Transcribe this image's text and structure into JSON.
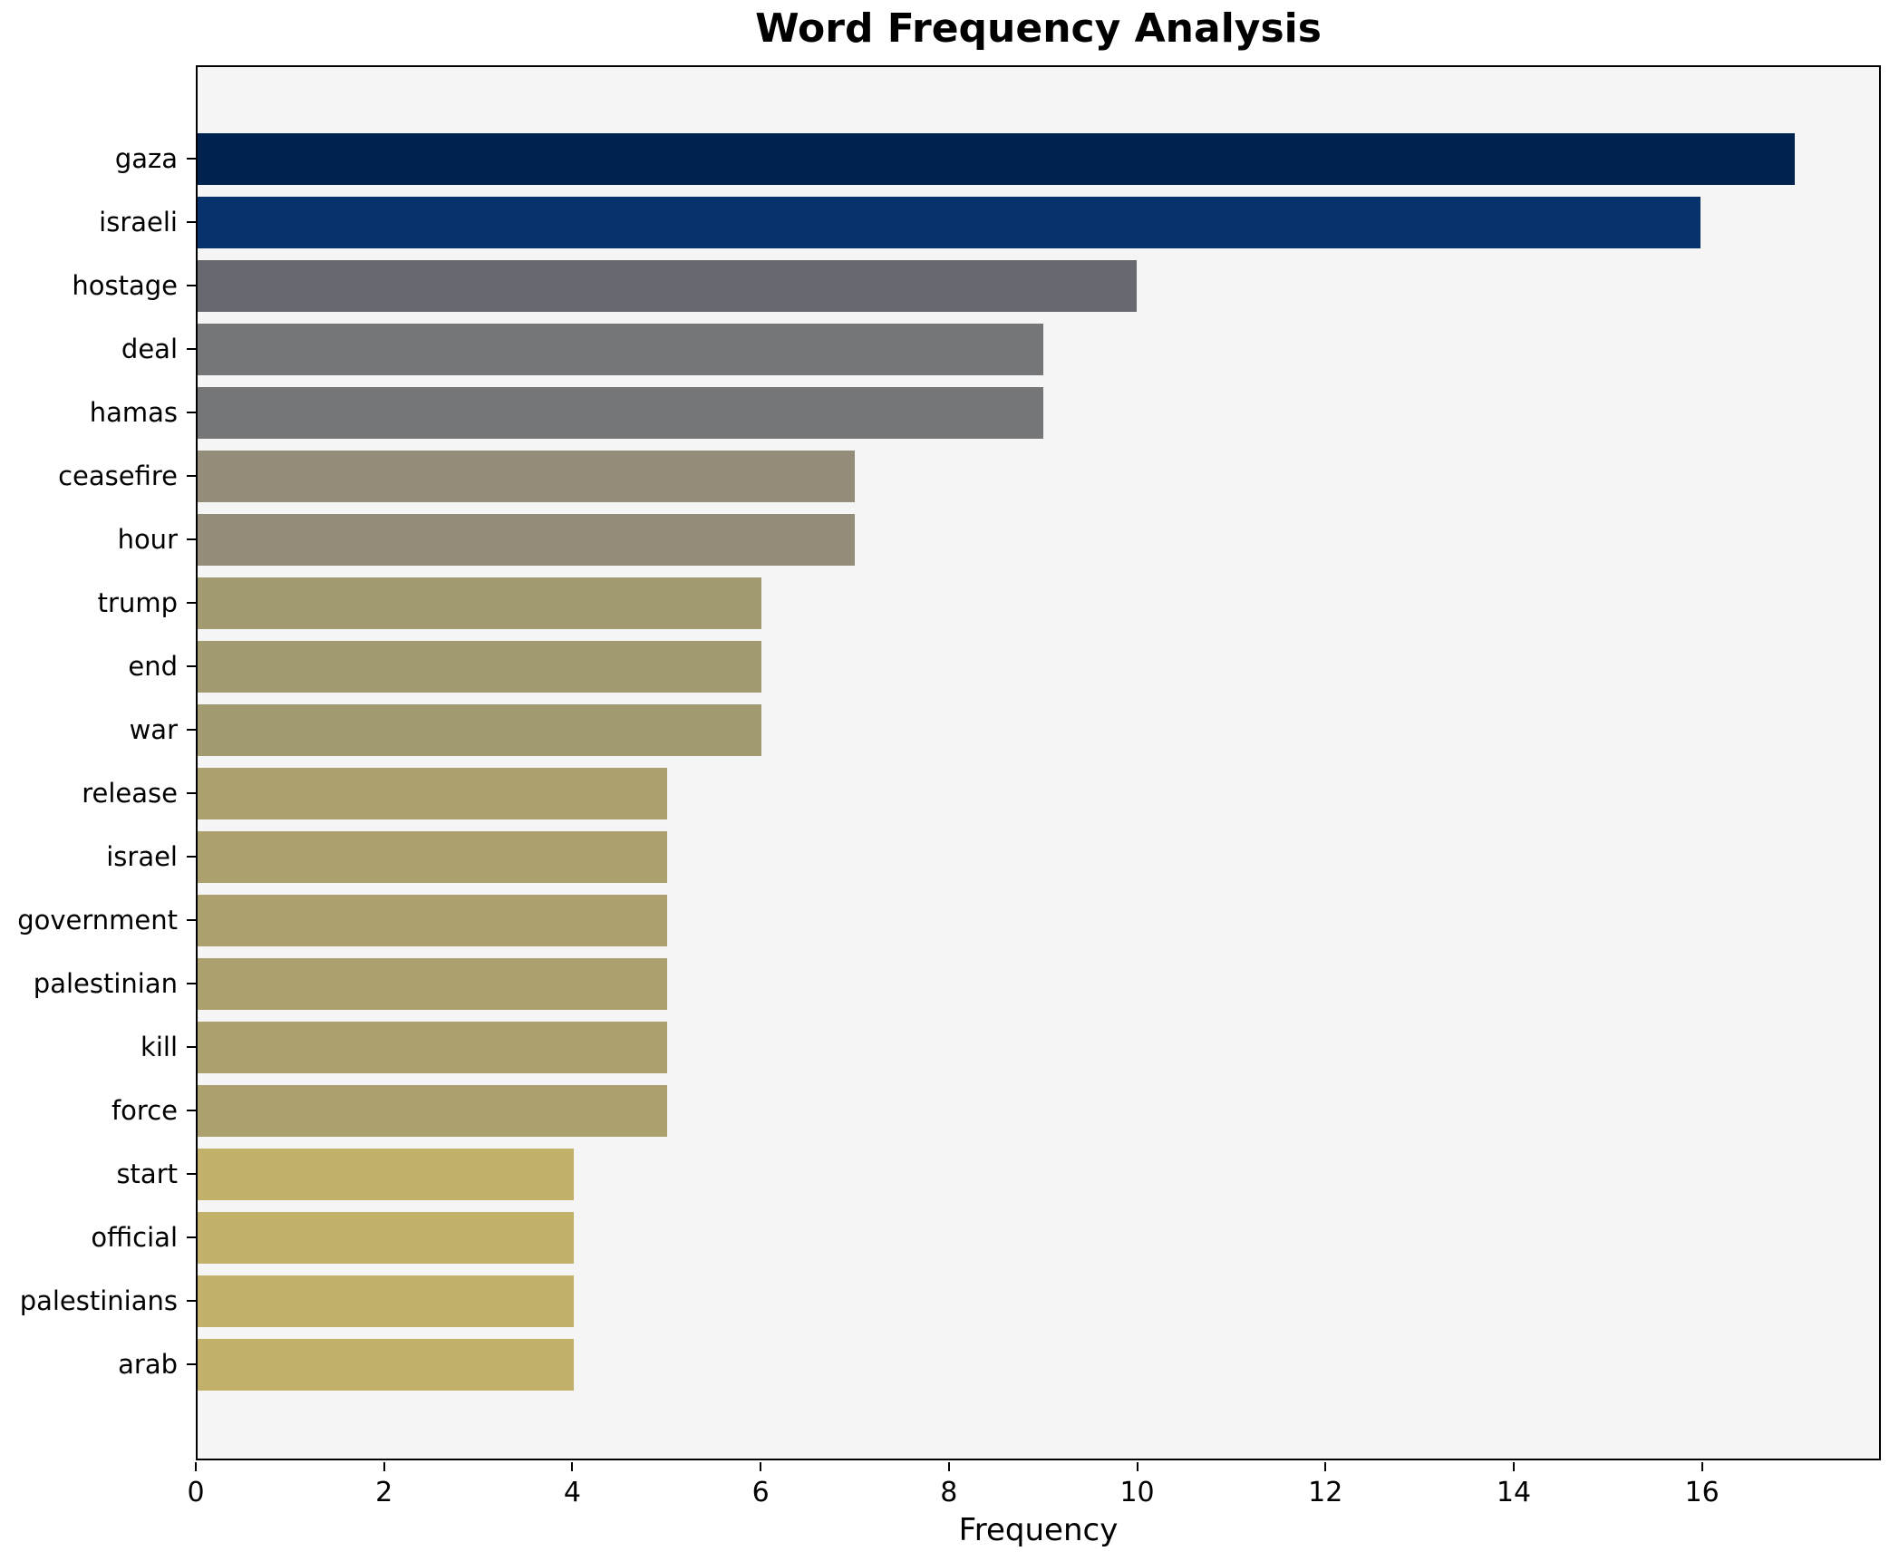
{
  "chart_data": {
    "type": "bar",
    "orientation": "horizontal",
    "title": "Word Frequency Analysis",
    "xlabel": "Frequency",
    "ylabel": "",
    "categories": [
      "gaza",
      "israeli",
      "hostage",
      "deal",
      "hamas",
      "ceasefire",
      "hour",
      "trump",
      "end",
      "war",
      "release",
      "israel",
      "government",
      "palestinian",
      "kill",
      "force",
      "start",
      "official",
      "palestinians",
      "arab"
    ],
    "values": [
      17,
      16,
      10,
      9,
      9,
      7,
      7,
      6,
      6,
      6,
      5,
      5,
      5,
      5,
      5,
      5,
      4,
      4,
      4,
      4
    ],
    "bar_colors": [
      "#00224e",
      "#08326b",
      "#66696f",
      "#757678",
      "#757678",
      "#938d79",
      "#938d79",
      "#a29a70",
      "#a29a70",
      "#a29a70",
      "#aca06e",
      "#aca06e",
      "#aca06e",
      "#aca06e",
      "#aca06e",
      "#aca06e",
      "#c1b169",
      "#c1b169",
      "#c1b169",
      "#c1b169"
    ],
    "xlim": [
      0,
      17.9
    ],
    "x_ticks": [
      0,
      2,
      4,
      6,
      8,
      10,
      12,
      14,
      16
    ],
    "grid": false,
    "legend": "none",
    "plot_background": "#f5f5f5",
    "figure_background": "#ffffff"
  }
}
